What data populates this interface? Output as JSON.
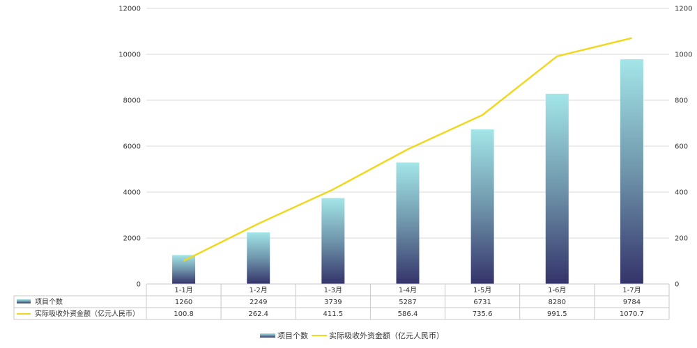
{
  "chart_data": {
    "type": "bar",
    "categories": [
      "1-1月",
      "1-2月",
      "1-3月",
      "1-4月",
      "1-5月",
      "1-6月",
      "1-7月"
    ],
    "series": [
      {
        "name": "项目个数",
        "type": "bar",
        "axis": "left",
        "values": [
          1260,
          2249,
          3739,
          5287,
          6731,
          8280,
          9784
        ],
        "display": [
          "1260",
          "2249",
          "3739",
          "5287",
          "6731",
          "8280",
          "9784"
        ],
        "color_top": "#a3e6e8",
        "color_bottom": "#34336a"
      },
      {
        "name": "实际吸收外资金额（亿元人民币）",
        "type": "line",
        "axis": "right",
        "values": [
          100.8,
          262.4,
          411.5,
          586.4,
          735.6,
          991.5,
          1070.7
        ],
        "display": [
          "100.8",
          "262.4",
          "411.5",
          "586.4",
          "735.6",
          "991.5",
          "1070.7"
        ],
        "color": "#f0d820"
      }
    ],
    "y_left": {
      "min": 0,
      "max": 12000,
      "ticks": [
        "0",
        "2000",
        "4000",
        "6000",
        "8000",
        "10000",
        "12000"
      ]
    },
    "y_right": {
      "min": 0,
      "max": 1200,
      "ticks": [
        "0",
        "200",
        "400",
        "600",
        "800",
        "1000",
        "1200"
      ]
    },
    "grid": true,
    "legend_position": "bottom",
    "data_table": true
  }
}
